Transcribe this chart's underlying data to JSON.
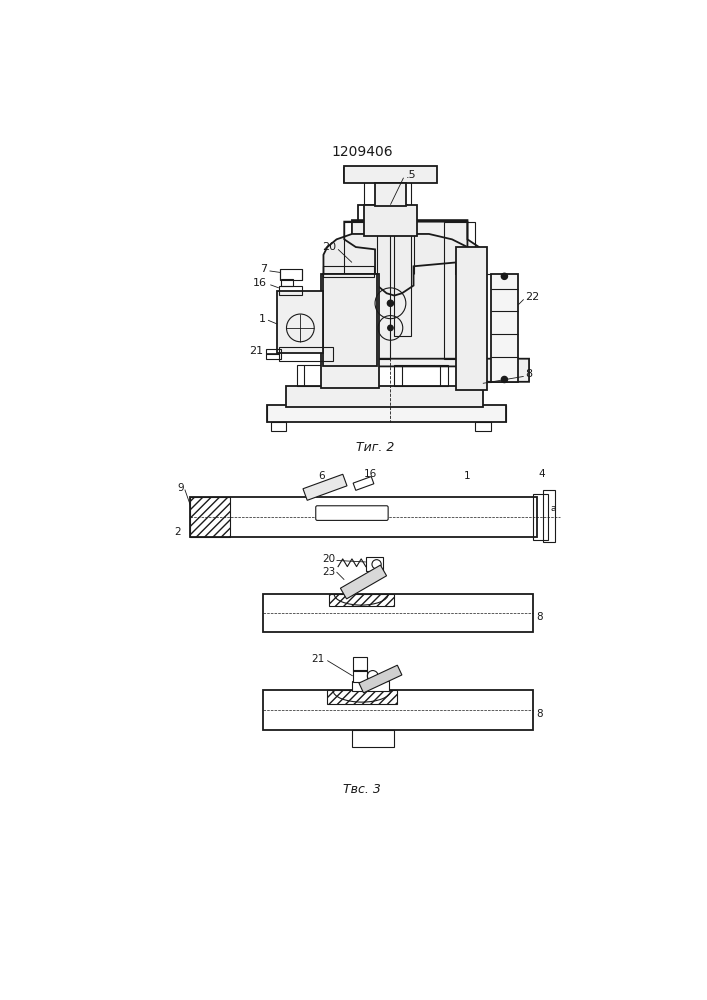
{
  "title": "1209406",
  "fig2_label": "Τиг. 2",
  "fig3_label": "Τвс. 3",
  "bg_color": "#ffffff",
  "line_color": "#1a1a1a",
  "lw": 0.8,
  "lw2": 1.3
}
